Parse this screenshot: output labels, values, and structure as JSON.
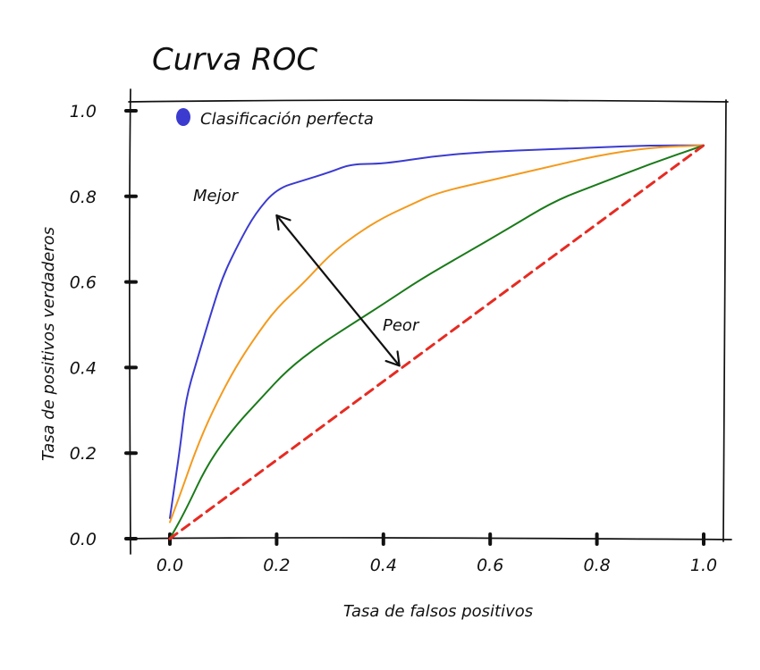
{
  "chart_data": {
    "type": "line",
    "title": "Curva ROC",
    "xlabel": "Tasa de falsos positivos",
    "ylabel": "Tasa de positivos verdaderos",
    "xlim": [
      0,
      1.0
    ],
    "ylim": [
      0,
      1.0
    ],
    "xticks": [
      "0.0",
      "0.2",
      "0.4",
      "0.6",
      "0.8",
      "1.0"
    ],
    "yticks": [
      "0.0",
      "0.2",
      "0.4",
      "0.6",
      "0.8",
      "1.0"
    ],
    "grid": false,
    "legend": {
      "label": "Clasificación perfecta",
      "position": "top-left"
    },
    "annotations": {
      "better": "Mejor",
      "worse": "Peor"
    },
    "series": [
      {
        "color": "#3b3bd0",
        "x": [
          0.0,
          0.01,
          0.02,
          0.03,
          0.05,
          0.08,
          0.1,
          0.13,
          0.16,
          0.2,
          0.25,
          0.3,
          0.34,
          0.4,
          0.5,
          0.6,
          0.7,
          0.8,
          0.9,
          1.0
        ],
        "y": [
          0.05,
          0.14,
          0.23,
          0.34,
          0.43,
          0.56,
          0.64,
          0.72,
          0.79,
          0.85,
          0.87,
          0.89,
          0.91,
          0.91,
          0.93,
          0.94,
          0.945,
          0.95,
          0.955,
          0.955
        ]
      },
      {
        "color": "#f39a1e",
        "x": [
          0.0,
          0.02,
          0.05,
          0.08,
          0.12,
          0.16,
          0.2,
          0.25,
          0.3,
          0.35,
          0.4,
          0.45,
          0.5,
          0.6,
          0.7,
          0.8,
          0.9,
          1.0
        ],
        "y": [
          0.04,
          0.11,
          0.22,
          0.31,
          0.41,
          0.49,
          0.56,
          0.62,
          0.69,
          0.74,
          0.78,
          0.81,
          0.84,
          0.87,
          0.9,
          0.93,
          0.95,
          0.955
        ]
      },
      {
        "color": "#1a7a1a",
        "x": [
          0.0,
          0.03,
          0.07,
          0.12,
          0.17,
          0.22,
          0.28,
          0.34,
          0.4,
          0.47,
          0.55,
          0.63,
          0.72,
          0.8,
          0.9,
          1.0
        ],
        "y": [
          0.0,
          0.07,
          0.18,
          0.27,
          0.34,
          0.41,
          0.47,
          0.52,
          0.57,
          0.63,
          0.69,
          0.75,
          0.82,
          0.86,
          0.91,
          0.955
        ]
      },
      {
        "color": "#e62b22",
        "dashed": true,
        "x": [
          0.0,
          1.0
        ],
        "y": [
          0.0,
          0.955
        ]
      }
    ],
    "arrow": {
      "from": [
        0.2,
        0.785
      ],
      "to": [
        0.43,
        0.42
      ]
    }
  }
}
